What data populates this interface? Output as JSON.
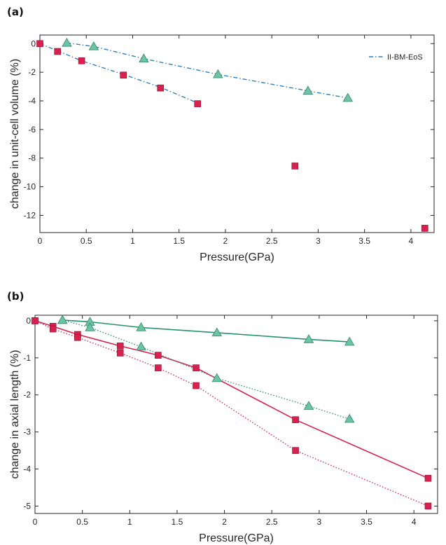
{
  "colors": {
    "square": "#d8214f",
    "triangle": "#6cc3a5",
    "triangle_edge": "#3e8f6e",
    "fit_dashdot": "#2f7fc1",
    "line_red": "#d8214f",
    "line_green": "#23936a",
    "axis": "#262626"
  },
  "chart_data": [
    {
      "panel_label": "(a)",
      "type": "scatter",
      "xlabel": "Pressure(GPa)",
      "ylabel": "change in unit-cell volume (%)",
      "xlim": [
        0,
        4.25
      ],
      "ylim": [
        -13.2,
        0.6
      ],
      "xticks": [
        0,
        0.5,
        1,
        1.5,
        2,
        2.5,
        3,
        3.5,
        4
      ],
      "xtick_labels": [
        "0",
        "0.5",
        "1",
        "1.5",
        "2",
        "2.5",
        "3",
        "3.5",
        "4"
      ],
      "yticks": [
        0,
        -2,
        -4,
        -6,
        -8,
        -10,
        -12
      ],
      "ytick_labels": [
        "0",
        "-2",
        "-4",
        "-6",
        "-8",
        "-10",
        "-12"
      ],
      "legend": {
        "position": "top-right",
        "label": "II-BM-EoS",
        "style": "dash-dot"
      },
      "grid": false,
      "series": [
        {
          "marker": "square",
          "points": [
            [
              0,
              0
            ],
            [
              0.19,
              -0.55
            ],
            [
              0.45,
              -1.2
            ],
            [
              0.9,
              -2.2
            ],
            [
              1.3,
              -3.1
            ],
            [
              1.7,
              -4.2
            ],
            [
              2.75,
              -8.55
            ],
            [
              4.15,
              -12.9
            ]
          ]
        },
        {
          "marker": "triangle",
          "points": [
            [
              0.29,
              0.05
            ],
            [
              0.58,
              -0.2
            ],
            [
              1.12,
              -1.05
            ],
            [
              1.92,
              -2.15
            ],
            [
              2.89,
              -3.3
            ],
            [
              3.32,
              -3.8
            ]
          ]
        }
      ],
      "fits": [
        {
          "name": "II-BM-EoS",
          "style": "dashdot",
          "points": [
            [
              0,
              0
            ],
            [
              0.19,
              -0.5
            ],
            [
              0.45,
              -1.2
            ],
            [
              0.9,
              -2.15
            ],
            [
              1.3,
              -3.05
            ],
            [
              1.72,
              -4.2
            ]
          ]
        },
        {
          "name": "II-BM-EoS",
          "style": "dashdot",
          "points": [
            [
              0.29,
              0.05
            ],
            [
              0.58,
              -0.2
            ],
            [
              1.12,
              -1.05
            ],
            [
              1.92,
              -2.15
            ],
            [
              2.89,
              -3.3
            ],
            [
              3.32,
              -3.8
            ]
          ]
        }
      ]
    },
    {
      "panel_label": "(b)",
      "type": "line",
      "xlabel": "Pressure(GPa)",
      "ylabel": "change in axial length (%)",
      "xlim": [
        0,
        4.25
      ],
      "ylim": [
        -5.2,
        0.15
      ],
      "xticks": [
        0,
        0.5,
        1,
        1.5,
        2,
        2.5,
        3,
        3.5,
        4
      ],
      "xtick_labels": [
        "0",
        "0.5",
        "1",
        "1.5",
        "2",
        "2.5",
        "3",
        "3.5",
        "4"
      ],
      "yticks": [
        0,
        -1,
        -2,
        -3,
        -4,
        -5
      ],
      "ytick_labels": [
        "0",
        "-1",
        "-2",
        "-3",
        "-4",
        "-5"
      ],
      "grid": false,
      "series": [
        {
          "marker": "square",
          "line": "solid",
          "color_key": "line_red",
          "points": [
            [
              0,
              0
            ],
            [
              0.19,
              -0.15
            ],
            [
              0.45,
              -0.37
            ],
            [
              0.9,
              -0.68
            ],
            [
              1.3,
              -0.93
            ],
            [
              1.7,
              -1.27
            ],
            [
              2.75,
              -2.67
            ],
            [
              4.15,
              -4.25
            ]
          ]
        },
        {
          "marker": "square",
          "line": "dotted",
          "color_key": "line_red",
          "points": [
            [
              0,
              0
            ],
            [
              0.19,
              -0.22
            ],
            [
              0.45,
              -0.45
            ],
            [
              0.9,
              -0.87
            ],
            [
              1.3,
              -1.27
            ],
            [
              1.7,
              -1.75
            ],
            [
              2.75,
              -3.5
            ],
            [
              4.15,
              -5.0
            ]
          ]
        },
        {
          "marker": "triangle",
          "line": "solid",
          "color_key": "line_green",
          "points": [
            [
              0.29,
              0.02
            ],
            [
              0.58,
              -0.03
            ],
            [
              1.12,
              -0.18
            ],
            [
              1.92,
              -0.32
            ],
            [
              2.89,
              -0.5
            ],
            [
              3.32,
              -0.57
            ]
          ]
        },
        {
          "marker": "triangle",
          "line": "dotted",
          "color_key": "line_green",
          "points": [
            [
              0.29,
              0.02
            ],
            [
              0.58,
              -0.18
            ],
            [
              1.12,
              -0.7
            ],
            [
              1.92,
              -1.55
            ],
            [
              2.89,
              -2.3
            ],
            [
              3.32,
              -2.65
            ]
          ]
        }
      ]
    }
  ]
}
